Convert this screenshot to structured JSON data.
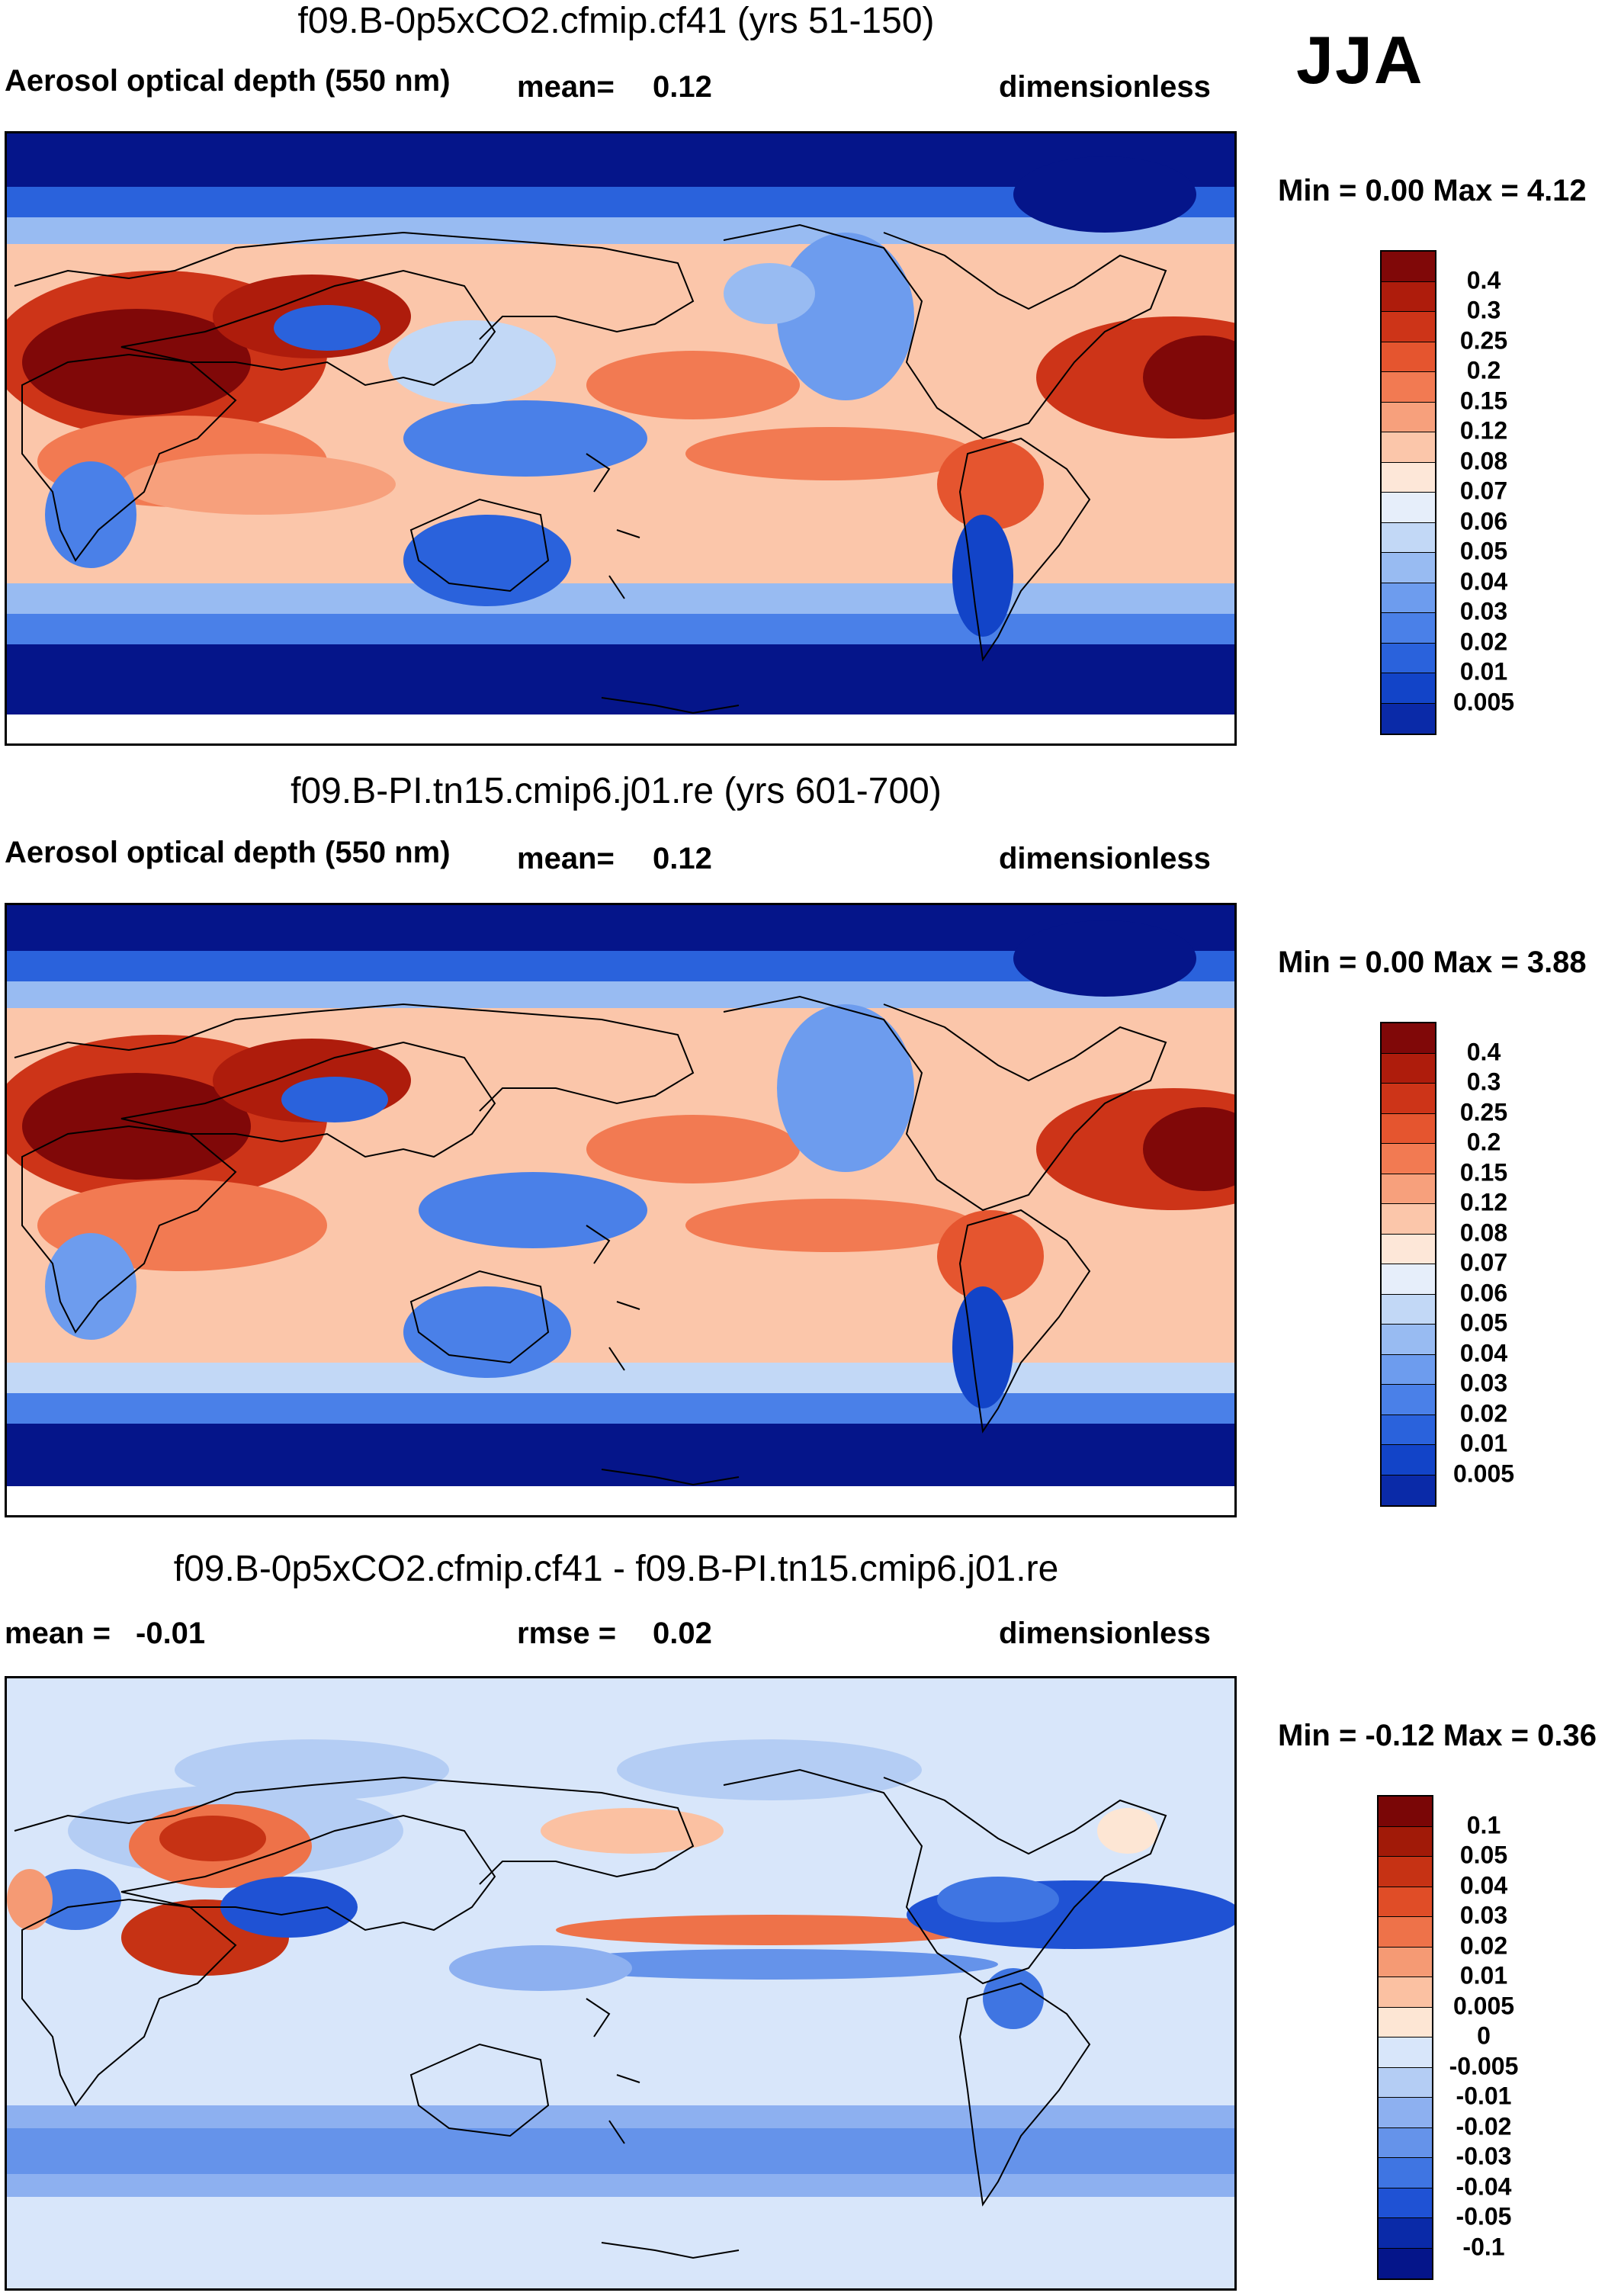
{
  "season": "JJA",
  "colors": {
    "abs_scale": [
      "#05158a",
      "#0a2aa8",
      "#1244c8",
      "#2a62dc",
      "#4a80e8",
      "#6d9cee",
      "#98bbf2",
      "#c2d8f6",
      "#e6eefa",
      "#fde7d8",
      "#fbc6aa",
      "#f7a07c",
      "#f27a52",
      "#e5552f",
      "#cd3418",
      "#ae1c0c",
      "#800808"
    ],
    "diff_scale": [
      "#05158a",
      "#0a2aa8",
      "#1f52d4",
      "#3f75e2",
      "#6593ea",
      "#8db0f0",
      "#b4cdf4",
      "#d8e6fa",
      "#fde6d4",
      "#fbc1a2",
      "#f59a74",
      "#ee7249",
      "#e04d27",
      "#c63214",
      "#a11a08",
      "#7a0606"
    ],
    "land_outline": "#000000",
    "polar": "#05158a"
  },
  "panels": [
    {
      "title": "f09.B-0p5xCO2.cfmip.cf41 (yrs 51-150)",
      "variable": "Aerosol optical depth (550 nm)",
      "stat1_label": "mean=",
      "stat1_value": "0.12",
      "units": "dimensionless",
      "minmax": "Min =   0.00 Max =   4.12",
      "colorbar_labels": [
        "0.4",
        "0.3",
        "0.25",
        "0.2",
        "0.15",
        "0.12",
        "0.08",
        "0.07",
        "0.06",
        "0.05",
        "0.04",
        "0.03",
        "0.02",
        "0.01",
        "0.005"
      ]
    },
    {
      "title": "f09.B-PI.tn15.cmip6.j01.re (yrs 601-700)",
      "variable": "Aerosol optical depth (550 nm)",
      "stat1_label": "mean=",
      "stat1_value": "0.12",
      "units": "dimensionless",
      "minmax": "Min =   0.00 Max =   3.88",
      "colorbar_labels": [
        "0.4",
        "0.3",
        "0.25",
        "0.2",
        "0.15",
        "0.12",
        "0.08",
        "0.07",
        "0.06",
        "0.05",
        "0.04",
        "0.03",
        "0.02",
        "0.01",
        "0.005"
      ]
    },
    {
      "title": "f09.B-0p5xCO2.cfmip.cf41 - f09.B-PI.tn15.cmip6.j01.re",
      "stat1_label": "mean =",
      "stat1_value": "-0.01",
      "stat2_label": "rmse =",
      "stat2_value": "0.02",
      "units": "dimensionless",
      "minmax": "Min =  -0.12 Max =   0.36",
      "colorbar_labels": [
        "0.1",
        "0.05",
        "0.04",
        "0.03",
        "0.02",
        "0.01",
        "0.005",
        "0",
        "-0.005",
        "-0.01",
        "-0.02",
        "-0.03",
        "-0.04",
        "-0.05",
        "-0.1"
      ]
    }
  ]
}
